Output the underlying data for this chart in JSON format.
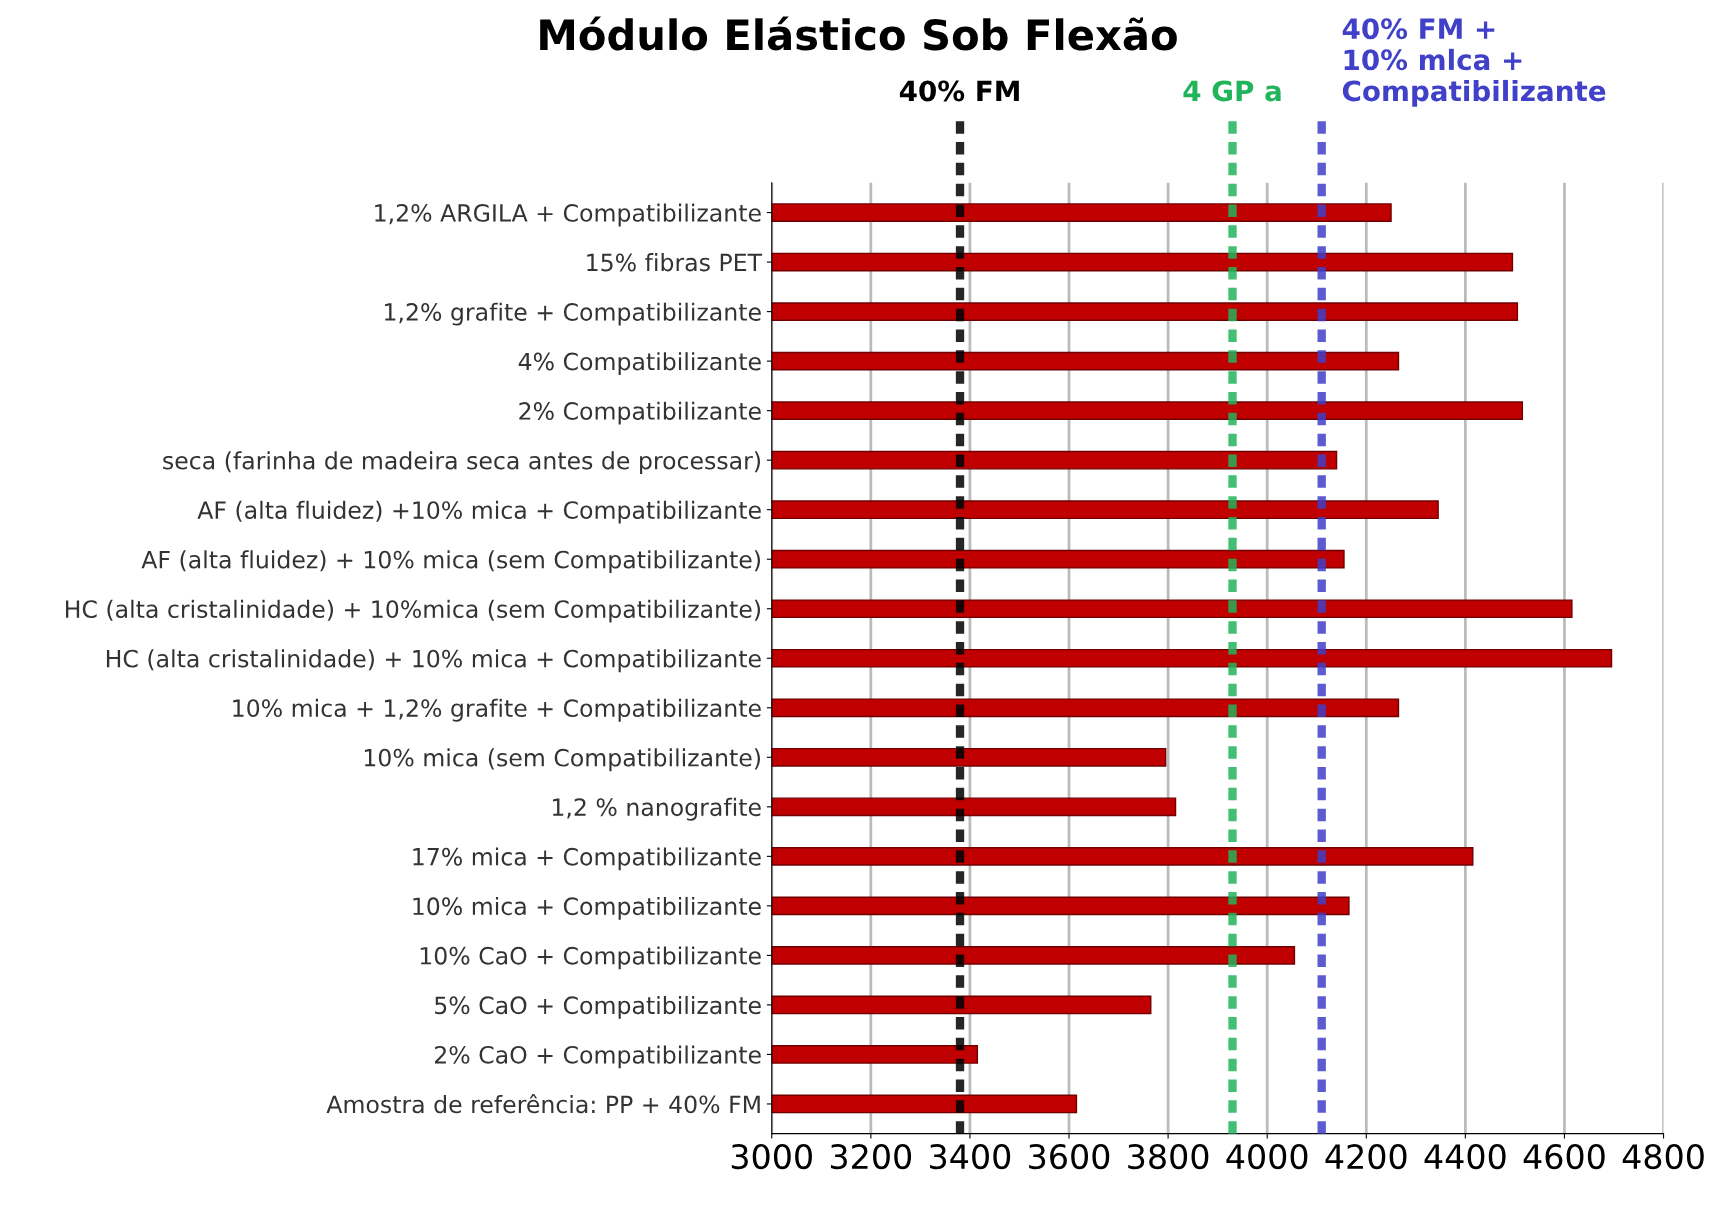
{
  "chart_data": {
    "type": "bar",
    "orientation": "horizontal",
    "title": "Módulo Elástico Sob Flexão",
    "categories": [
      "1,2% ARGILA + Compatibilizante",
      "15% fibras PET",
      "1,2% grafite + Compatibilizante",
      "4% Compatibilizante",
      "2% Compatibilizante",
      "seca (farinha de madeira seca antes de processar)",
      "AF (alta fluidez) +10% mica + Compatibilizante",
      "AF (alta fluidez) + 10% mica (sem Compatibilizante)",
      "HC (alta cristalinidade) + 10%mica (sem Compatibilizante)",
      "HC (alta cristalinidade) + 10% mica + Compatibilizante",
      "10% mica + 1,2% grafite + Compatibilizante",
      "10% mica (sem Compatibilizante)",
      "1,2 % nanografite",
      "17% mica + Compatibilizante",
      "10% mica + Compatibilizante",
      "10% CaO + Compatibilizante",
      "5% CaO + Compatibilizante",
      "2% CaO + Compatibilizante",
      "Amostra de referência: PP + 40% FM"
    ],
    "values": [
      4250,
      4495,
      4505,
      4265,
      4515,
      4140,
      4345,
      4155,
      4615,
      4695,
      4265,
      3795,
      3815,
      4415,
      4165,
      4055,
      3765,
      3415,
      3615
    ],
    "color": "#c00000",
    "xlim": [
      3000,
      4800
    ],
    "xticks": [
      3000,
      3200,
      3400,
      3600,
      3800,
      4000,
      4200,
      4400,
      4600,
      4800
    ],
    "grid": "x",
    "ref_lines": [
      {
        "axis": "x",
        "value": 3380,
        "label": "40% FM",
        "color": "#000000",
        "line_style": "dashed"
      },
      {
        "axis": "x",
        "value": 3930,
        "label": "4 GP a",
        "color": "#22b45a",
        "line_style": "dashed"
      },
      {
        "axis": "x",
        "value": 4110,
        "label": "40% FM +\n10% mlca +\nCompatibilizante",
        "color": "#4040c8",
        "line_style": "dashed"
      }
    ]
  }
}
